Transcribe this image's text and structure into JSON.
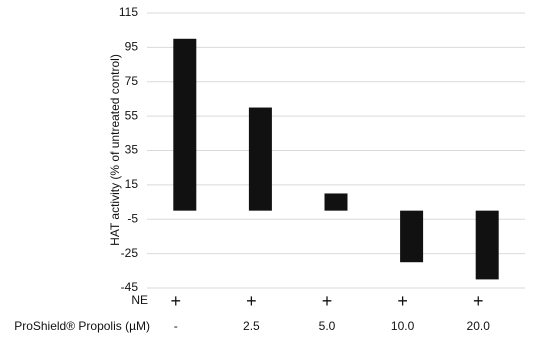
{
  "chart_data": {
    "type": "bar",
    "y_label": "HAT activity (% of untreated control)",
    "categories": [
      "-",
      "2.5",
      "5.0",
      "10.0",
      "20.0"
    ],
    "category_label": "ProShield® Propolis (µM)",
    "condition": {
      "name": "NE",
      "values": [
        "+",
        "+",
        "+",
        "+",
        "+"
      ]
    },
    "values": [
      100,
      60,
      10,
      -30,
      -40
    ],
    "color": "#111111",
    "ylim": [
      -45,
      115
    ],
    "yticks": [
      -45,
      -25,
      -5,
      15,
      35,
      55,
      75,
      95,
      115
    ],
    "grid": true
  }
}
